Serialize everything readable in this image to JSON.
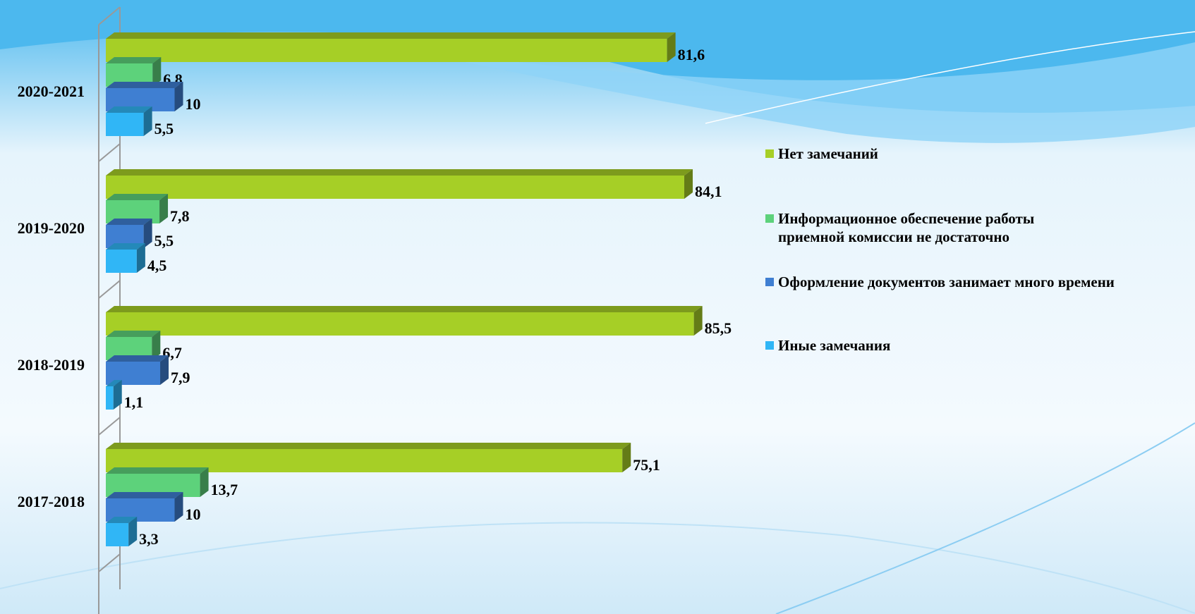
{
  "chart_data": {
    "type": "bar",
    "orientation": "horizontal",
    "categories": [
      "2020-2021",
      "2019-2020",
      "2018-2019",
      "2017-2018"
    ],
    "xlim": [
      0,
      100
    ],
    "legend": "right",
    "series": [
      {
        "name": "Нет замечаний",
        "color": "#a6cf26",
        "values": [
          81.6,
          84.1,
          85.5,
          75.1
        ],
        "value_labels": [
          "81,6",
          "84,1",
          "85,5",
          "75,1"
        ]
      },
      {
        "name": "Информационное обеспечение работы приемной комиссии не достаточно",
        "color": "#5dd27b",
        "values": [
          6.8,
          7.8,
          6.7,
          13.7
        ],
        "value_labels": [
          "6,8",
          "7,8",
          "6,7",
          "13,7"
        ]
      },
      {
        "name": "Оформление документов занимает много времени",
        "color": "#3f7fd2",
        "values": [
          10,
          5.5,
          7.9,
          10
        ],
        "value_labels": [
          "10",
          "5,5",
          "7,9",
          "10"
        ]
      },
      {
        "name": "Иные замечания",
        "color": "#30b6f6",
        "values": [
          5.5,
          4.5,
          1.1,
          3.3
        ],
        "value_labels": [
          "5,5",
          "4,5",
          "1,1",
          "3,3"
        ]
      }
    ]
  }
}
